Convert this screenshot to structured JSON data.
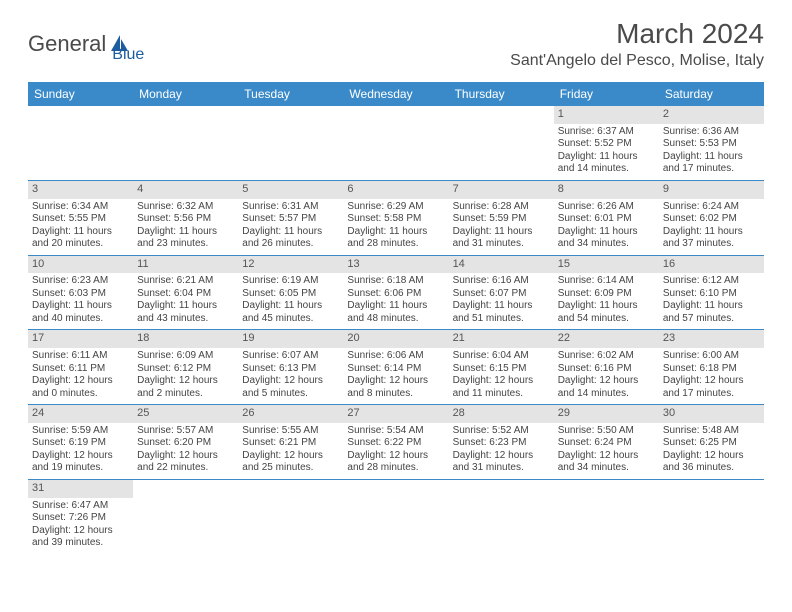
{
  "logo": {
    "text1": "General",
    "text2": "Blue",
    "color1": "#6a6a6a",
    "color2": "#1d5c9e",
    "sail_color": "#1d5c9e"
  },
  "header": {
    "month": "March 2024",
    "location": "Sant'Angelo del Pesco, Molise, Italy"
  },
  "colors": {
    "header_bar": "#3a8ac9",
    "daynum_bg": "#e4e4e4",
    "rule": "#3a8ac9"
  },
  "weekdays": [
    "Sunday",
    "Monday",
    "Tuesday",
    "Wednesday",
    "Thursday",
    "Friday",
    "Saturday"
  ],
  "weeks": [
    [
      {
        "blank": true
      },
      {
        "blank": true
      },
      {
        "blank": true
      },
      {
        "blank": true
      },
      {
        "blank": true
      },
      {
        "num": "1",
        "sunrise": "Sunrise: 6:37 AM",
        "sunset": "Sunset: 5:52 PM",
        "daylight": "Daylight: 11 hours and 14 minutes."
      },
      {
        "num": "2",
        "sunrise": "Sunrise: 6:36 AM",
        "sunset": "Sunset: 5:53 PM",
        "daylight": "Daylight: 11 hours and 17 minutes."
      }
    ],
    [
      {
        "num": "3",
        "sunrise": "Sunrise: 6:34 AM",
        "sunset": "Sunset: 5:55 PM",
        "daylight": "Daylight: 11 hours and 20 minutes."
      },
      {
        "num": "4",
        "sunrise": "Sunrise: 6:32 AM",
        "sunset": "Sunset: 5:56 PM",
        "daylight": "Daylight: 11 hours and 23 minutes."
      },
      {
        "num": "5",
        "sunrise": "Sunrise: 6:31 AM",
        "sunset": "Sunset: 5:57 PM",
        "daylight": "Daylight: 11 hours and 26 minutes."
      },
      {
        "num": "6",
        "sunrise": "Sunrise: 6:29 AM",
        "sunset": "Sunset: 5:58 PM",
        "daylight": "Daylight: 11 hours and 28 minutes."
      },
      {
        "num": "7",
        "sunrise": "Sunrise: 6:28 AM",
        "sunset": "Sunset: 5:59 PM",
        "daylight": "Daylight: 11 hours and 31 minutes."
      },
      {
        "num": "8",
        "sunrise": "Sunrise: 6:26 AM",
        "sunset": "Sunset: 6:01 PM",
        "daylight": "Daylight: 11 hours and 34 minutes."
      },
      {
        "num": "9",
        "sunrise": "Sunrise: 6:24 AM",
        "sunset": "Sunset: 6:02 PM",
        "daylight": "Daylight: 11 hours and 37 minutes."
      }
    ],
    [
      {
        "num": "10",
        "sunrise": "Sunrise: 6:23 AM",
        "sunset": "Sunset: 6:03 PM",
        "daylight": "Daylight: 11 hours and 40 minutes."
      },
      {
        "num": "11",
        "sunrise": "Sunrise: 6:21 AM",
        "sunset": "Sunset: 6:04 PM",
        "daylight": "Daylight: 11 hours and 43 minutes."
      },
      {
        "num": "12",
        "sunrise": "Sunrise: 6:19 AM",
        "sunset": "Sunset: 6:05 PM",
        "daylight": "Daylight: 11 hours and 45 minutes."
      },
      {
        "num": "13",
        "sunrise": "Sunrise: 6:18 AM",
        "sunset": "Sunset: 6:06 PM",
        "daylight": "Daylight: 11 hours and 48 minutes."
      },
      {
        "num": "14",
        "sunrise": "Sunrise: 6:16 AM",
        "sunset": "Sunset: 6:07 PM",
        "daylight": "Daylight: 11 hours and 51 minutes."
      },
      {
        "num": "15",
        "sunrise": "Sunrise: 6:14 AM",
        "sunset": "Sunset: 6:09 PM",
        "daylight": "Daylight: 11 hours and 54 minutes."
      },
      {
        "num": "16",
        "sunrise": "Sunrise: 6:12 AM",
        "sunset": "Sunset: 6:10 PM",
        "daylight": "Daylight: 11 hours and 57 minutes."
      }
    ],
    [
      {
        "num": "17",
        "sunrise": "Sunrise: 6:11 AM",
        "sunset": "Sunset: 6:11 PM",
        "daylight": "Daylight: 12 hours and 0 minutes."
      },
      {
        "num": "18",
        "sunrise": "Sunrise: 6:09 AM",
        "sunset": "Sunset: 6:12 PM",
        "daylight": "Daylight: 12 hours and 2 minutes."
      },
      {
        "num": "19",
        "sunrise": "Sunrise: 6:07 AM",
        "sunset": "Sunset: 6:13 PM",
        "daylight": "Daylight: 12 hours and 5 minutes."
      },
      {
        "num": "20",
        "sunrise": "Sunrise: 6:06 AM",
        "sunset": "Sunset: 6:14 PM",
        "daylight": "Daylight: 12 hours and 8 minutes."
      },
      {
        "num": "21",
        "sunrise": "Sunrise: 6:04 AM",
        "sunset": "Sunset: 6:15 PM",
        "daylight": "Daylight: 12 hours and 11 minutes."
      },
      {
        "num": "22",
        "sunrise": "Sunrise: 6:02 AM",
        "sunset": "Sunset: 6:16 PM",
        "daylight": "Daylight: 12 hours and 14 minutes."
      },
      {
        "num": "23",
        "sunrise": "Sunrise: 6:00 AM",
        "sunset": "Sunset: 6:18 PM",
        "daylight": "Daylight: 12 hours and 17 minutes."
      }
    ],
    [
      {
        "num": "24",
        "sunrise": "Sunrise: 5:59 AM",
        "sunset": "Sunset: 6:19 PM",
        "daylight": "Daylight: 12 hours and 19 minutes."
      },
      {
        "num": "25",
        "sunrise": "Sunrise: 5:57 AM",
        "sunset": "Sunset: 6:20 PM",
        "daylight": "Daylight: 12 hours and 22 minutes."
      },
      {
        "num": "26",
        "sunrise": "Sunrise: 5:55 AM",
        "sunset": "Sunset: 6:21 PM",
        "daylight": "Daylight: 12 hours and 25 minutes."
      },
      {
        "num": "27",
        "sunrise": "Sunrise: 5:54 AM",
        "sunset": "Sunset: 6:22 PM",
        "daylight": "Daylight: 12 hours and 28 minutes."
      },
      {
        "num": "28",
        "sunrise": "Sunrise: 5:52 AM",
        "sunset": "Sunset: 6:23 PM",
        "daylight": "Daylight: 12 hours and 31 minutes."
      },
      {
        "num": "29",
        "sunrise": "Sunrise: 5:50 AM",
        "sunset": "Sunset: 6:24 PM",
        "daylight": "Daylight: 12 hours and 34 minutes."
      },
      {
        "num": "30",
        "sunrise": "Sunrise: 5:48 AM",
        "sunset": "Sunset: 6:25 PM",
        "daylight": "Daylight: 12 hours and 36 minutes."
      }
    ],
    [
      {
        "num": "31",
        "sunrise": "Sunrise: 6:47 AM",
        "sunset": "Sunset: 7:26 PM",
        "daylight": "Daylight: 12 hours and 39 minutes."
      },
      {
        "blank": true
      },
      {
        "blank": true
      },
      {
        "blank": true
      },
      {
        "blank": true
      },
      {
        "blank": true
      },
      {
        "blank": true
      }
    ]
  ]
}
